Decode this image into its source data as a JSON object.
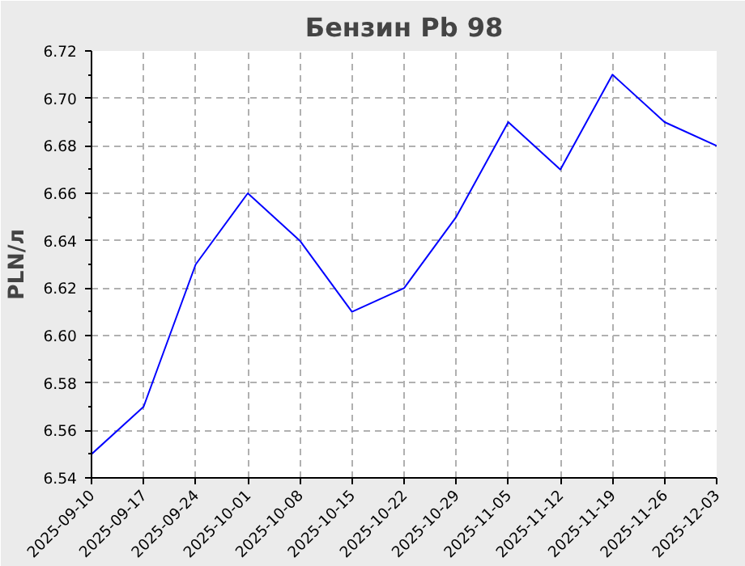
{
  "chart_data": {
    "type": "line",
    "title": "Бензин Pb 98",
    "ylabel": "PLN/л",
    "categories": [
      "2025-09-10",
      "2025-09-17",
      "2025-09-24",
      "2025-10-01",
      "2025-10-08",
      "2025-10-15",
      "2025-10-22",
      "2025-10-29",
      "2025-11-05",
      "2025-11-12",
      "2025-11-19",
      "2025-11-26",
      "2025-12-03"
    ],
    "series": [
      {
        "color": "#0000ff",
        "values": [
          6.55,
          6.57,
          6.63,
          6.66,
          6.64,
          6.61,
          6.62,
          6.65,
          6.69,
          6.67,
          6.71,
          6.69,
          6.68
        ]
      }
    ],
    "ylim": [
      6.54,
      6.72
    ],
    "yticks": [
      6.54,
      6.56,
      6.58,
      {
        "value": 6.6,
        "label": "6.60"
      },
      6.62,
      6.64,
      6.66,
      6.68,
      {
        "value": 6.7,
        "label": "6.70"
      },
      6.72
    ],
    "grid": true,
    "line_style": "solid",
    "marker": "none"
  }
}
